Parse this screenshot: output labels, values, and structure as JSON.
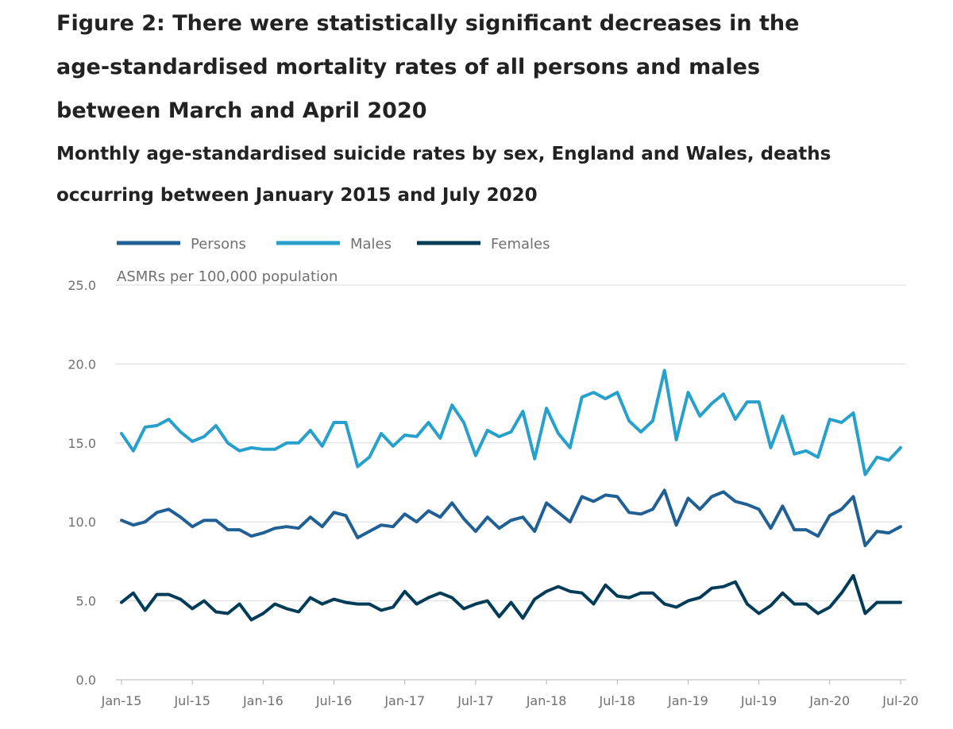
{
  "figure_title": "Figure 2: There were statistically significant decreases in the age-standardised mortality rates of all persons and males between March and April 2020",
  "chart_data": {
    "type": "line",
    "title": "Monthly age-standardised suicide rates by sex, England and Wales, deaths occurring between January 2015 and July 2020",
    "ylabel": "ASMRs per 100,000 population",
    "xlabel": "",
    "ylim": [
      0,
      25
    ],
    "yticks": [
      "0.0",
      "5.0",
      "10.0",
      "15.0",
      "20.0",
      "25.0"
    ],
    "ytick_values": [
      0,
      5,
      10,
      15,
      20,
      25
    ],
    "xticks": [
      "Jan-15",
      "Jul-15",
      "Jan-16",
      "Jul-16",
      "Jan-17",
      "Jul-17",
      "Jan-18",
      "Jul-18",
      "Jan-19",
      "Jul-19",
      "Jan-20",
      "Jul-20"
    ],
    "xtick_month_index": [
      0,
      6,
      12,
      18,
      24,
      30,
      36,
      42,
      48,
      54,
      60,
      66
    ],
    "x_start": "Jan-15",
    "x_end": "Jul-20",
    "grid": "horizontal",
    "legend_position": "top-left",
    "series": [
      {
        "name": "Persons",
        "color": "#206095",
        "values": [
          10.1,
          9.8,
          10.0,
          10.6,
          10.8,
          10.3,
          9.7,
          10.1,
          10.1,
          9.5,
          9.5,
          9.1,
          9.3,
          9.6,
          9.7,
          9.6,
          10.3,
          9.7,
          10.6,
          10.4,
          9.0,
          9.4,
          9.8,
          9.7,
          10.5,
          10.0,
          10.7,
          10.3,
          11.2,
          10.2,
          9.4,
          10.3,
          9.6,
          10.1,
          10.3,
          9.4,
          11.2,
          10.6,
          10.0,
          11.6,
          11.3,
          11.7,
          11.6,
          10.6,
          10.5,
          10.8,
          12.0,
          9.8,
          11.5,
          10.8,
          11.6,
          11.9,
          11.3,
          11.1,
          10.8,
          9.6,
          11.0,
          9.5,
          9.5,
          9.1,
          10.4,
          10.8,
          11.6,
          8.5,
          9.4,
          9.3,
          9.7
        ]
      },
      {
        "name": "Males",
        "color": "#27a0cc",
        "values": [
          15.6,
          14.5,
          16.0,
          16.1,
          16.5,
          15.7,
          15.1,
          15.4,
          16.1,
          15.0,
          14.5,
          14.7,
          14.6,
          14.6,
          15.0,
          15.0,
          15.8,
          14.8,
          16.3,
          16.3,
          13.5,
          14.1,
          15.6,
          14.8,
          15.5,
          15.4,
          16.3,
          15.3,
          17.4,
          16.3,
          14.2,
          15.8,
          15.4,
          15.7,
          17.0,
          14.0,
          17.2,
          15.6,
          14.7,
          17.9,
          18.2,
          17.8,
          18.2,
          16.4,
          15.7,
          16.4,
          19.6,
          15.2,
          18.2,
          16.7,
          17.5,
          18.1,
          16.5,
          17.6,
          17.6,
          14.7,
          16.7,
          14.3,
          14.5,
          14.1,
          16.5,
          16.3,
          16.9,
          13.0,
          14.1,
          13.9,
          14.7
        ]
      },
      {
        "name": "Females",
        "color": "#003c57",
        "values": [
          4.9,
          5.5,
          4.4,
          5.4,
          5.4,
          5.1,
          4.5,
          5.0,
          4.3,
          4.2,
          4.8,
          3.8,
          4.2,
          4.8,
          4.5,
          4.3,
          5.2,
          4.8,
          5.1,
          4.9,
          4.8,
          4.8,
          4.4,
          4.6,
          5.6,
          4.8,
          5.2,
          5.5,
          5.2,
          4.5,
          4.8,
          5.0,
          4.0,
          4.9,
          3.9,
          5.1,
          5.6,
          5.9,
          5.6,
          5.5,
          4.8,
          6.0,
          5.3,
          5.2,
          5.5,
          5.5,
          4.8,
          4.6,
          5.0,
          5.2,
          5.8,
          5.9,
          6.2,
          4.8,
          4.2,
          4.7,
          5.5,
          4.8,
          4.8,
          4.2,
          4.6,
          5.5,
          6.6,
          4.2,
          4.9,
          4.9,
          4.9
        ]
      }
    ]
  }
}
